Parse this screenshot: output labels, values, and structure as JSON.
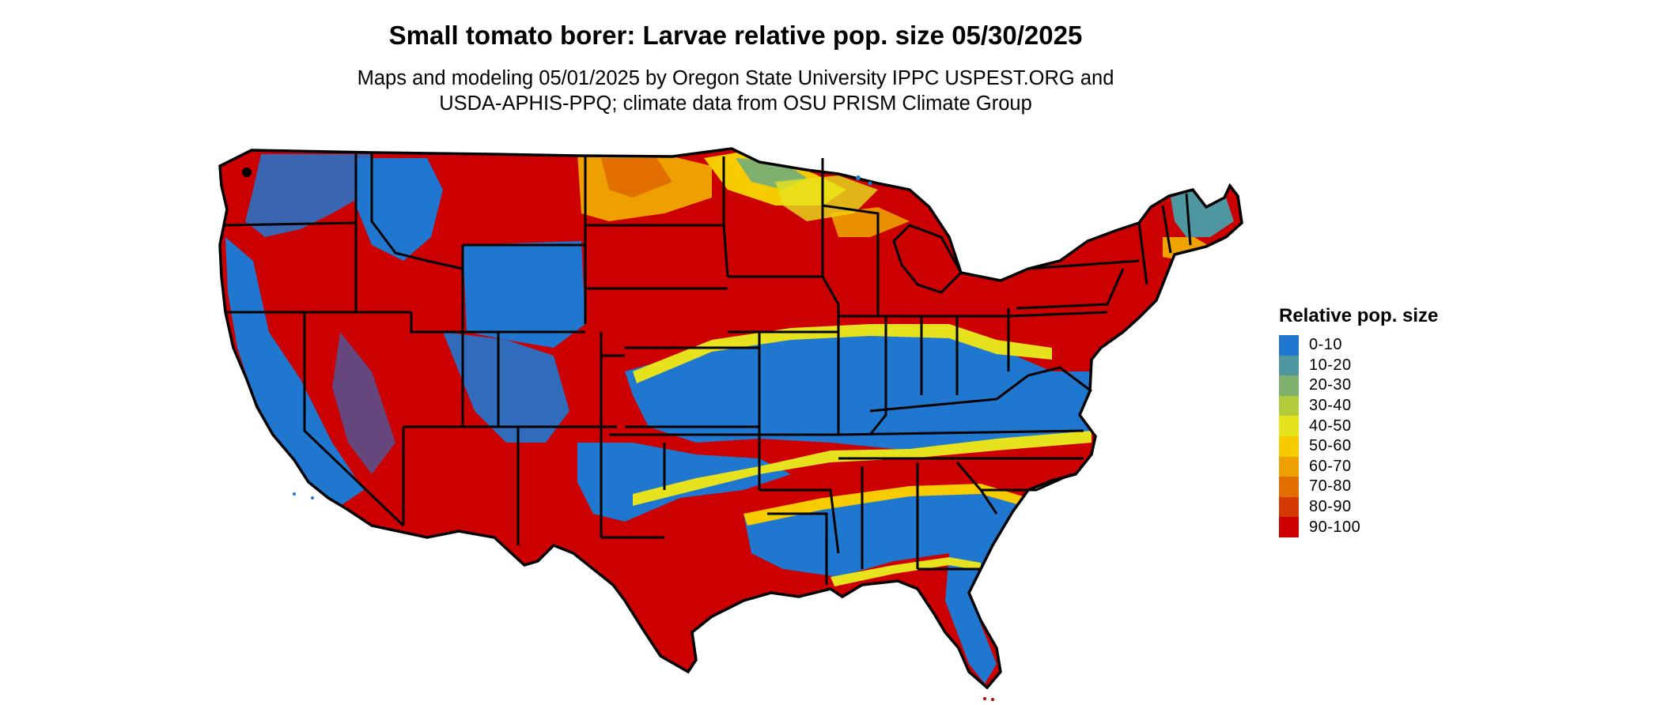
{
  "title": "Small tomato borer: Larvae relative pop. size 05/30/2025",
  "subtitle_line1": "Maps and modeling 05/01/2025 by Oregon State University IPPC USPEST.ORG and",
  "subtitle_line2": "USDA-APHIS-PPQ; climate data from OSU PRISM Climate Group",
  "legend": {
    "title": "Relative pop. size",
    "items": [
      {
        "label": "0-10",
        "color": "#1f77d0"
      },
      {
        "label": "10-20",
        "color": "#4e96a0"
      },
      {
        "label": "20-30",
        "color": "#7fb06e"
      },
      {
        "label": "30-40",
        "color": "#b2cc3c"
      },
      {
        "label": "40-50",
        "color": "#e6e21e"
      },
      {
        "label": "50-60",
        "color": "#f6cc00"
      },
      {
        "label": "60-70",
        "color": "#eea000"
      },
      {
        "label": "70-80",
        "color": "#e26e00"
      },
      {
        "label": "80-90",
        "color": "#d43a00"
      },
      {
        "label": "90-100",
        "color": "#cc0000"
      }
    ]
  },
  "map": {
    "region": "Contiguous United States",
    "boundaries": "state outlines"
  }
}
